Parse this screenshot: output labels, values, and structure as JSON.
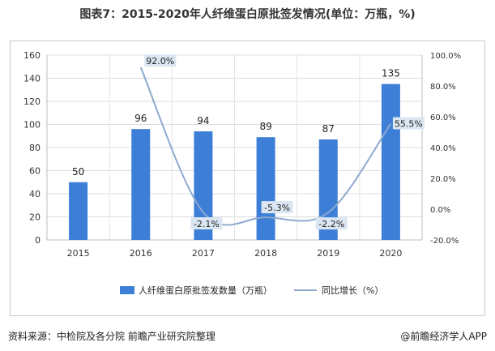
{
  "title": "图表7：2015-2020年人纤维蛋白原批签发情况(单位：万瓶，%)",
  "footer": {
    "source": "资料来源：中检院及各分院 前瞻产业研究院整理",
    "brand": "@前瞻经济学人APP"
  },
  "chart_data": {
    "type": "bar",
    "categories": [
      "2015",
      "2016",
      "2017",
      "2018",
      "2019",
      "2020"
    ],
    "series": [
      {
        "name": "人纤维蛋白原批签发数量（万瓶）",
        "type": "bar",
        "axis": "left",
        "values": [
          50,
          96,
          94,
          89,
          87,
          135
        ],
        "labels": [
          "50",
          "96",
          "94",
          "89",
          "87",
          "135"
        ],
        "color": "#3d7fd6"
      },
      {
        "name": "同比增长（%）",
        "type": "line",
        "axis": "right",
        "values": [
          null,
          92.0,
          -2.1,
          -5.3,
          -2.2,
          55.5
        ],
        "labels": [
          "",
          "92.0%",
          "-2.1%",
          "-5.3%",
          "-2.2%",
          "55.5%"
        ],
        "color": "#8fa9d0"
      }
    ],
    "y_left": {
      "min": 0,
      "max": 160,
      "ticks": [
        "0",
        "20",
        "40",
        "60",
        "80",
        "100",
        "120",
        "140",
        "160"
      ]
    },
    "y_right": {
      "min": -20,
      "max": 100,
      "ticks": [
        "-20.0%",
        "0.0%",
        "20.0%",
        "40.0%",
        "60.0%",
        "80.0%",
        "100.0%"
      ]
    },
    "grid": true,
    "legend": "bottom"
  }
}
